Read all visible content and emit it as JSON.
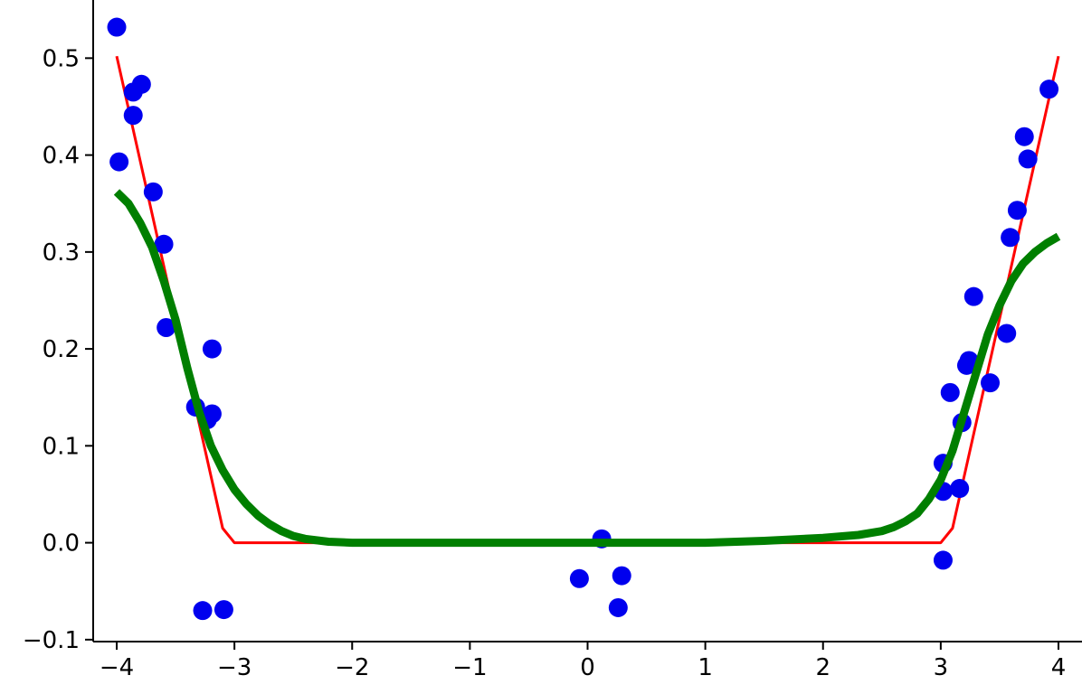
{
  "chart_data": {
    "type": "scatter",
    "title": "",
    "xlabel": "",
    "ylabel": "",
    "xlim": [
      -4.2,
      4.2
    ],
    "ylim": [
      -0.102,
      0.56
    ],
    "xticks": [
      -4,
      -3,
      -2,
      -1,
      0,
      1,
      2,
      3,
      4
    ],
    "xtick_labels": [
      "−4",
      "−3",
      "−2",
      "−1",
      "0",
      "1",
      "2",
      "3",
      "4"
    ],
    "yticks": [
      -0.1,
      0.0,
      0.1,
      0.2,
      0.3,
      0.4,
      0.5
    ],
    "ytick_labels": [
      "−0.1",
      "0.0",
      "0.1",
      "0.2",
      "0.3",
      "0.4",
      "0.5"
    ],
    "grid": false,
    "legend": "none",
    "colors": {
      "points": "#0000ee",
      "red_line": "#ff0000",
      "green_line": "#007f00"
    },
    "series": [
      {
        "kind": "scatter",
        "color": "#0000ee",
        "points": [
          {
            "x": -4.0,
            "y": 0.532
          },
          {
            "x": -3.98,
            "y": 0.393
          },
          {
            "x": -3.86,
            "y": 0.465
          },
          {
            "x": -3.79,
            "y": 0.473
          },
          {
            "x": -3.86,
            "y": 0.441
          },
          {
            "x": -3.69,
            "y": 0.362
          },
          {
            "x": -3.6,
            "y": 0.308
          },
          {
            "x": -3.58,
            "y": 0.222
          },
          {
            "x": -3.33,
            "y": 0.14
          },
          {
            "x": -3.23,
            "y": 0.127
          },
          {
            "x": -3.19,
            "y": 0.133
          },
          {
            "x": -3.19,
            "y": 0.2
          },
          {
            "x": -3.27,
            "y": -0.07
          },
          {
            "x": -3.09,
            "y": -0.069
          },
          {
            "x": -0.07,
            "y": -0.037
          },
          {
            "x": 0.12,
            "y": 0.004
          },
          {
            "x": 0.26,
            "y": -0.067
          },
          {
            "x": 0.29,
            "y": -0.034
          },
          {
            "x": 3.02,
            "y": -0.018
          },
          {
            "x": 3.02,
            "y": 0.053
          },
          {
            "x": 3.02,
            "y": 0.082
          },
          {
            "x": 3.08,
            "y": 0.155
          },
          {
            "x": 3.16,
            "y": 0.056
          },
          {
            "x": 3.18,
            "y": 0.124
          },
          {
            "x": 3.22,
            "y": 0.183
          },
          {
            "x": 3.24,
            "y": 0.188
          },
          {
            "x": 3.28,
            "y": 0.254
          },
          {
            "x": 3.42,
            "y": 0.165
          },
          {
            "x": 3.56,
            "y": 0.216
          },
          {
            "x": 3.59,
            "y": 0.315
          },
          {
            "x": 3.65,
            "y": 0.343
          },
          {
            "x": 3.71,
            "y": 0.419
          },
          {
            "x": 3.74,
            "y": 0.396
          },
          {
            "x": 3.92,
            "y": 0.468
          }
        ]
      },
      {
        "kind": "line",
        "color": "#ff0000",
        "x": [
          -4.0,
          -3.1,
          -3.0,
          -2.95,
          2.95,
          3.0,
          3.1,
          4.0
        ],
        "y": [
          0.502,
          0.015,
          0.0,
          0.0,
          0.0,
          0.0,
          0.015,
          0.502
        ]
      },
      {
        "kind": "line",
        "color": "#007f00",
        "x": [
          -4.0,
          -3.9,
          -3.8,
          -3.7,
          -3.6,
          -3.5,
          -3.4,
          -3.3,
          -3.2,
          -3.1,
          -3.0,
          -2.9,
          -2.8,
          -2.7,
          -2.6,
          -2.5,
          -2.4,
          -2.2,
          -2.0,
          -1.5,
          -1.0,
          0.0,
          1.0,
          1.5,
          2.0,
          2.3,
          2.5,
          2.6,
          2.7,
          2.8,
          2.9,
          3.0,
          3.1,
          3.2,
          3.3,
          3.4,
          3.5,
          3.6,
          3.7,
          3.8,
          3.9,
          4.0
        ],
        "y": [
          0.362,
          0.35,
          0.33,
          0.305,
          0.27,
          0.23,
          0.18,
          0.135,
          0.1,
          0.075,
          0.055,
          0.04,
          0.028,
          0.019,
          0.012,
          0.007,
          0.004,
          0.001,
          0.0,
          0.0,
          0.0,
          0.0,
          0.0,
          0.002,
          0.005,
          0.008,
          0.012,
          0.016,
          0.022,
          0.03,
          0.045,
          0.065,
          0.095,
          0.135,
          0.175,
          0.215,
          0.245,
          0.27,
          0.288,
          0.3,
          0.309,
          0.316
        ]
      }
    ]
  }
}
